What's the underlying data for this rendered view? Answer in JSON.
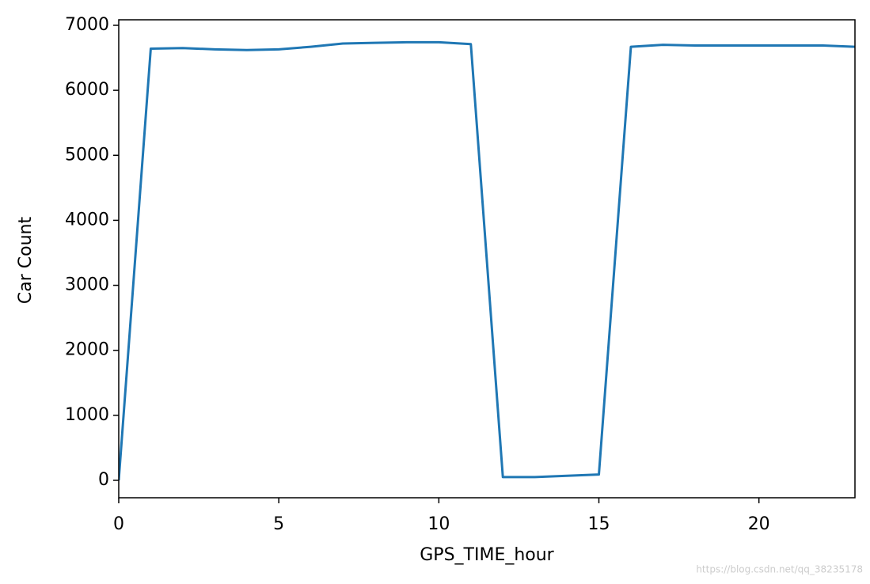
{
  "chart_data": {
    "type": "line",
    "x_label": "GPS_TIME_hour",
    "y_label": "Car Count",
    "x": [
      0,
      1,
      2,
      3,
      4,
      5,
      6,
      7,
      8,
      9,
      10,
      11,
      12,
      13,
      14,
      15,
      16,
      17,
      18,
      19,
      20,
      21,
      22,
      23
    ],
    "series": [
      {
        "color": "#1f77b4",
        "values": [
          0,
          6640,
          6650,
          6630,
          6620,
          6630,
          6670,
          6720,
          6730,
          6740,
          6740,
          6710,
          50,
          50,
          70,
          90,
          6670,
          6700,
          6690,
          6690,
          6690,
          6690,
          6690,
          6670
        ]
      }
    ],
    "xlim": [
      0,
      23
    ],
    "xticks": [
      0,
      5,
      10,
      15,
      20
    ],
    "ylim": [
      -268,
      7085
    ],
    "yticks": [
      0,
      1000,
      2000,
      3000,
      4000,
      5000,
      6000,
      7000
    ],
    "grid": false
  },
  "watermark": "https://blog.csdn.net/qq_38235178"
}
